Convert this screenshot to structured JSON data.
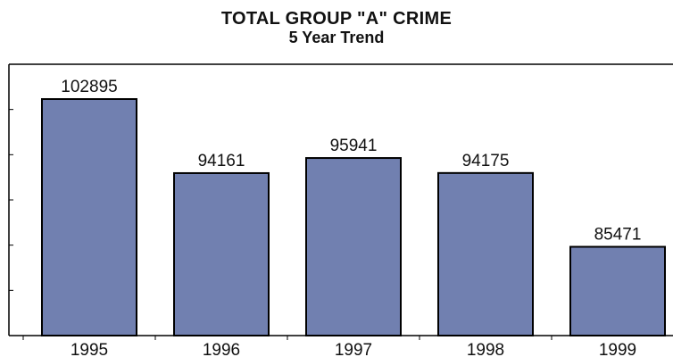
{
  "chart_data": {
    "type": "bar",
    "title": "TOTAL GROUP \"A\" CRIME",
    "subtitle": "5 Year Trend",
    "categories": [
      "1995",
      "1996",
      "1997",
      "1998",
      "1999"
    ],
    "values": [
      102895,
      94161,
      95941,
      94175,
      85471
    ],
    "data_labels": [
      "102895",
      "94161",
      "95941",
      "94175",
      "85471"
    ],
    "xlabel": "",
    "ylabel": "",
    "ylim": [
      75000,
      107000
    ],
    "grid": false,
    "legend": "none",
    "bar_color": "#7180B0",
    "bar_outline_color": "#000000"
  }
}
